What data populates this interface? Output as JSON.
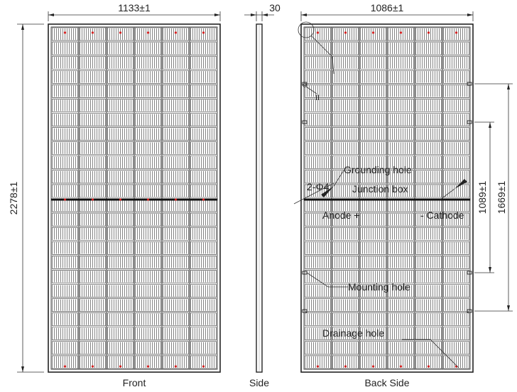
{
  "dimensions": {
    "front_width": "1133±1",
    "side_depth": "30",
    "back_width": "1086±1",
    "height": "2278±1",
    "mount_spacing_inner": "1089±1",
    "mount_spacing_outer": "1669±1"
  },
  "views": {
    "front": "Front",
    "side": "Side",
    "back": "Back Side"
  },
  "annotations": {
    "grounding_hole": "Grounding hole",
    "junction_box": "Junction box",
    "hole_dia": "2-Φ4",
    "anode": "Anode +",
    "cathode": "- Cathode",
    "mounting_hole": "Mounting hole",
    "drainage_hole": "Drainage hole",
    "detail_mark": "II"
  },
  "colors": {
    "line": "#222222",
    "marker": "#d42020"
  }
}
